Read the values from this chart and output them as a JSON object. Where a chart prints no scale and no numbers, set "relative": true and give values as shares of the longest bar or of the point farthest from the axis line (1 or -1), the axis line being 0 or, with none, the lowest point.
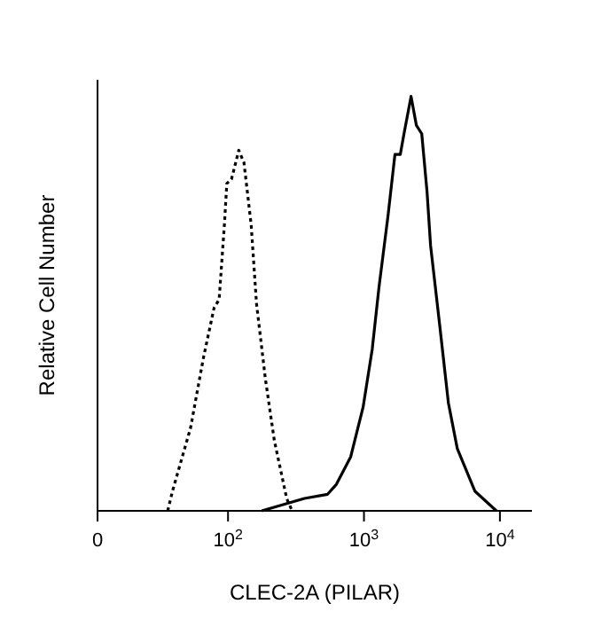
{
  "chart_data": {
    "type": "line",
    "relative": true,
    "xlabel": "CLEC-2A (PILAR)",
    "ylabel": "Relative Cell Number",
    "log": "x",
    "xlim": [
      0,
      17200
    ],
    "xticks": [
      0,
      {
        "value": 100,
        "label": "10$^{2}$"
      },
      {
        "value": 1000,
        "label": "10$^{3}$"
      },
      {
        "value": 10000,
        "label": "10$^{4}$"
      }
    ],
    "legend": false,
    "grid": false,
    "marker": "none",
    "series": [
      {
        "color": "#000000",
        "line_style": "dotted",
        "x": [
          36,
          39,
          53,
          66,
          79,
          86,
          94,
          98,
          106,
          120,
          131,
          148,
          162,
          188,
          219,
          270,
          296
        ],
        "values": [
          0,
          0.047,
          0.2,
          0.37,
          0.49,
          0.51,
          0.69,
          0.79,
          0.8,
          0.87,
          0.84,
          0.69,
          0.5,
          0.32,
          0.17,
          0.03,
          0
        ]
      },
      {
        "color": "#000000",
        "line_style": "solid",
        "x": [
          177,
          365,
          540,
          627,
          798,
          985,
          1150,
          1290,
          1500,
          1690,
          1850,
          1970,
          2220,
          2430,
          2660,
          2910,
          3090,
          3600,
          4180,
          4860,
          6560,
          9420
        ],
        "values": [
          0,
          0.03,
          0.04,
          0.064,
          0.13,
          0.25,
          0.39,
          0.54,
          0.71,
          0.86,
          0.86,
          0.91,
          1,
          0.93,
          0.91,
          0.77,
          0.64,
          0.45,
          0.26,
          0.15,
          0.047,
          0
        ]
      }
    ]
  }
}
